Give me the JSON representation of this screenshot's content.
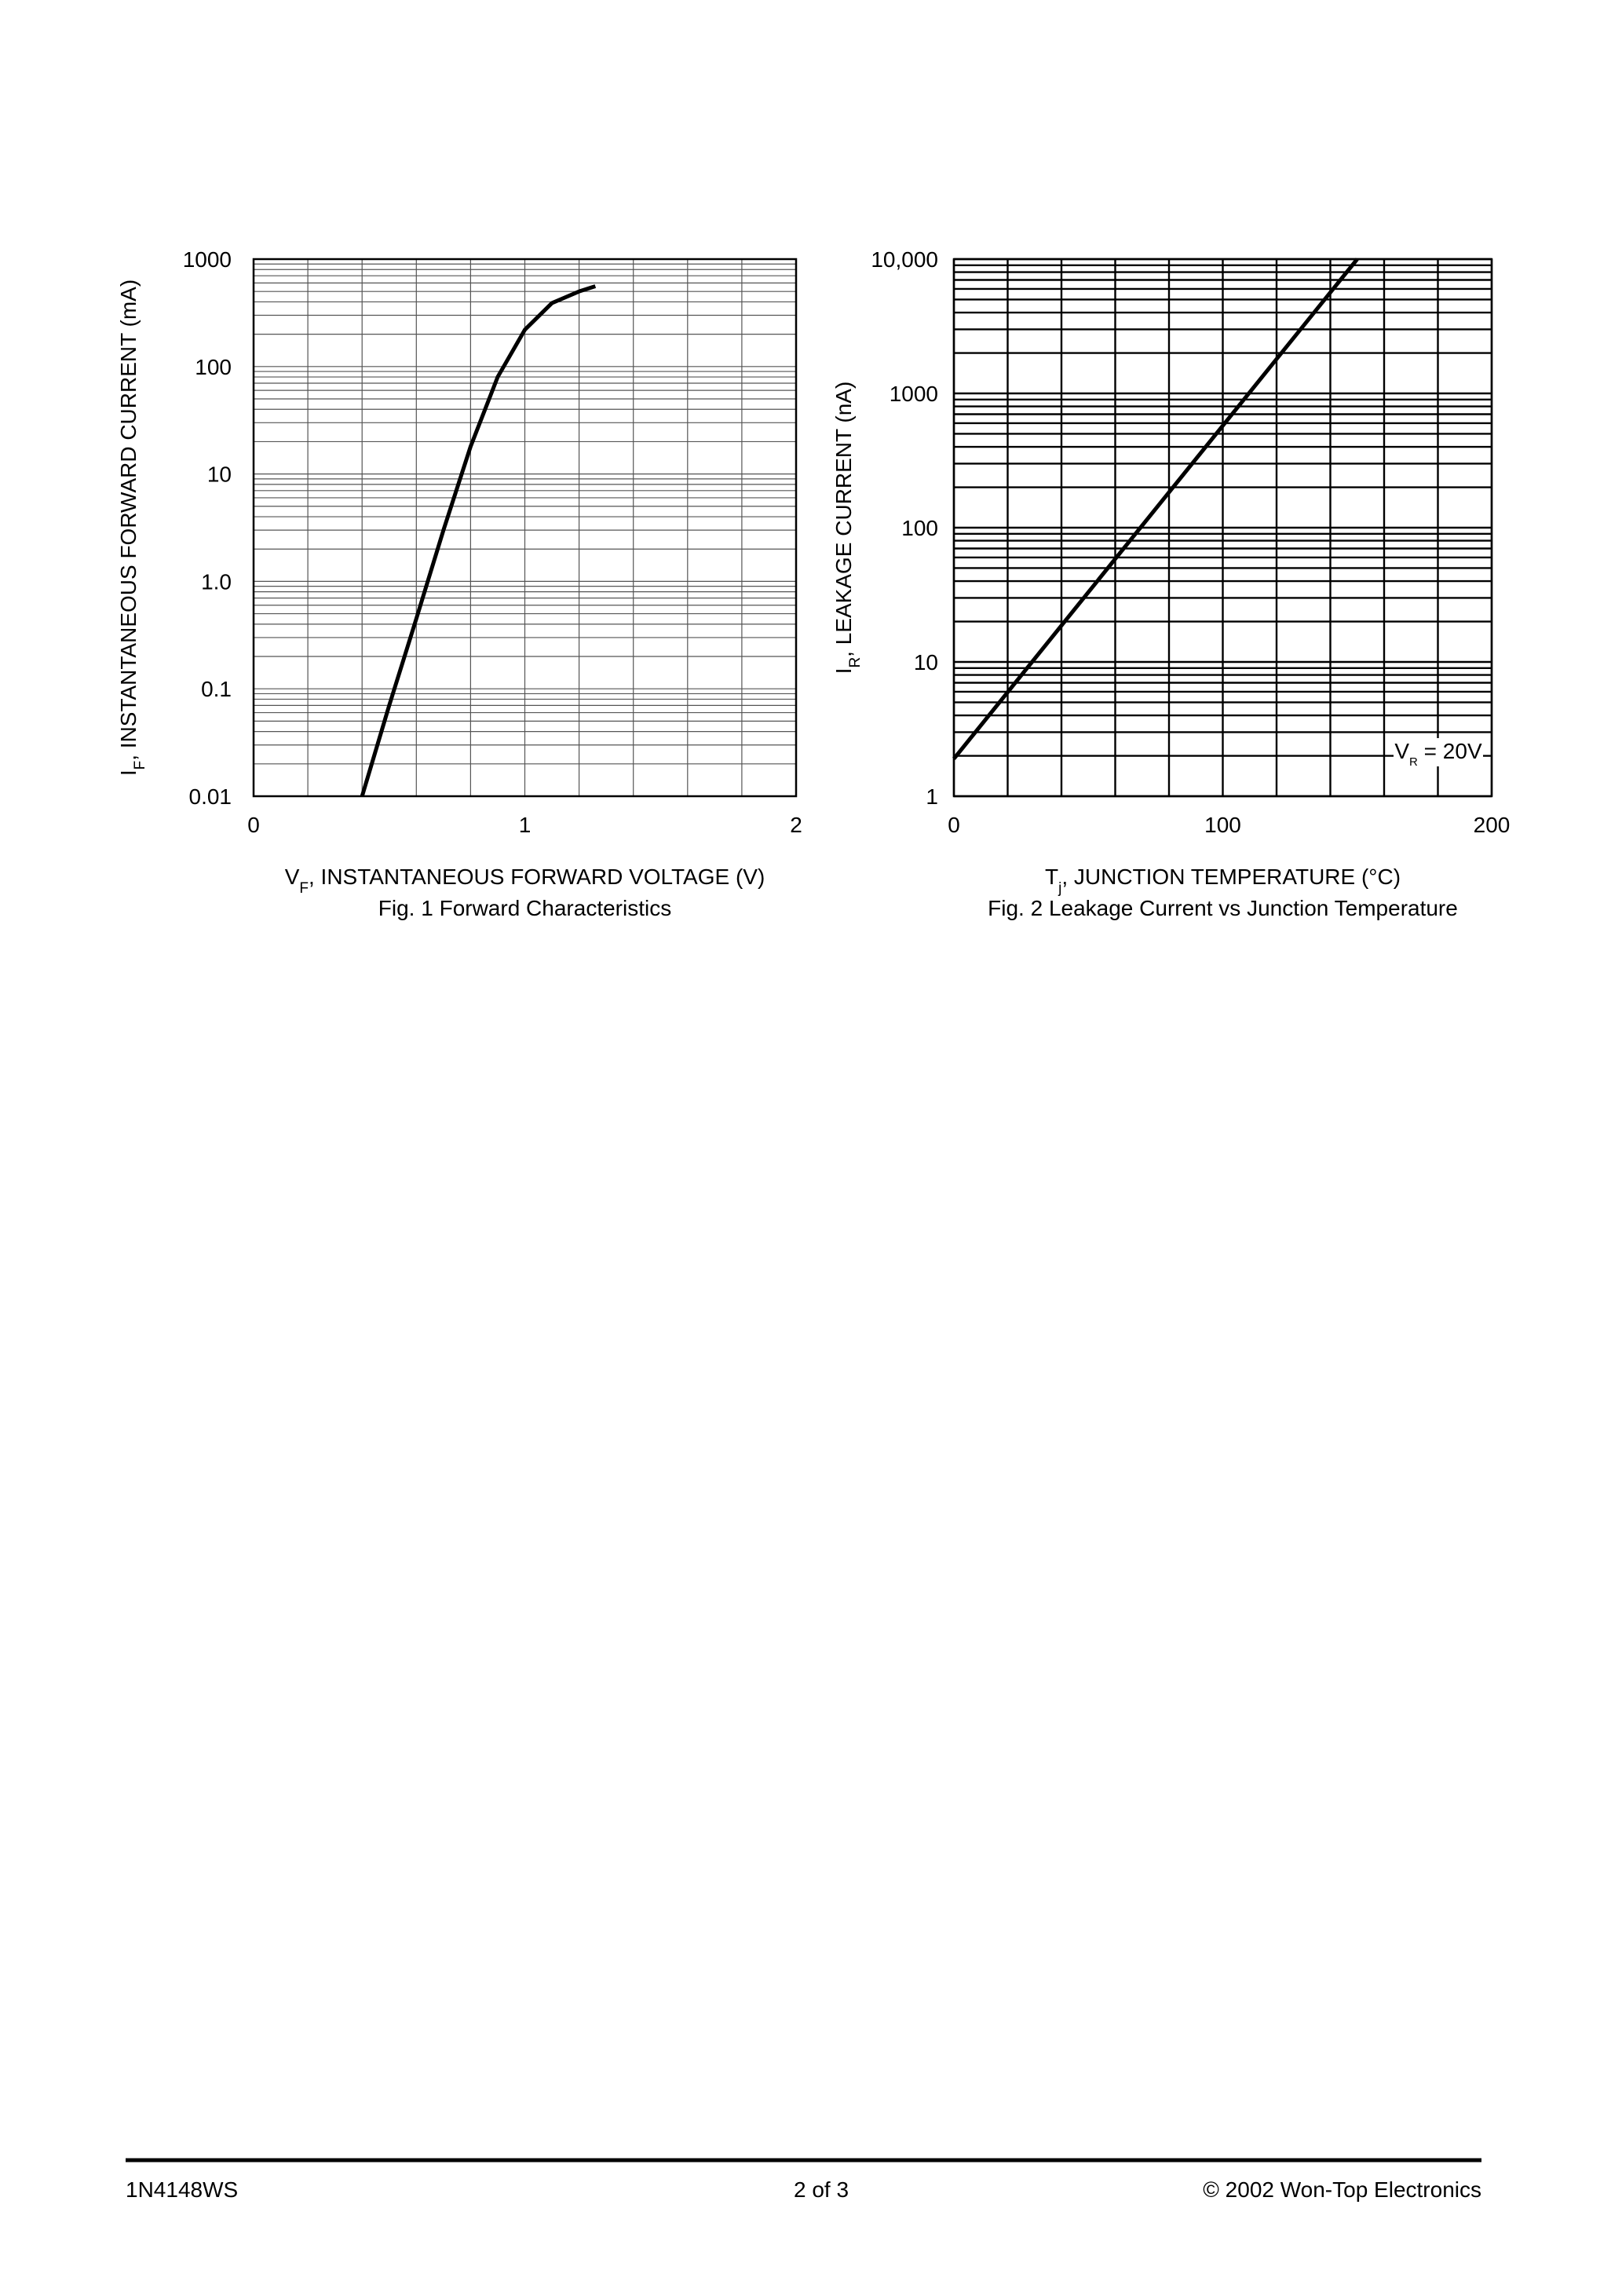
{
  "chart_data": [
    {
      "type": "line",
      "title": "Fig. 1  Forward Characteristics",
      "xlabel": [
        "V",
        "F",
        ", INSTANTANEOUS FORWARD VOLTAGE (V)"
      ],
      "ylabel": [
        "I",
        "F",
        ", INSTANTANEOUS FORWARD CURRENT (mA)"
      ],
      "xlim": [
        0,
        2
      ],
      "xticks": [
        0,
        1,
        2
      ],
      "xgrid": [
        0,
        0.2,
        0.4,
        0.6,
        0.8,
        1,
        1.2,
        1.4,
        1.6,
        1.8,
        2
      ],
      "ylim": [
        0.01,
        1000
      ],
      "ylog": true,
      "yticks": [
        0.01,
        0.1,
        {
          "value": 1,
          "label": "1.0"
        },
        10,
        100,
        1000
      ],
      "grid": true,
      "x": [
        0.4,
        0.5,
        0.6,
        0.7,
        0.8,
        0.9,
        1.0,
        1.1,
        1.2,
        1.26
      ],
      "series": [
        {
          "color": "#000000",
          "values": [
            0.01,
            0.07,
            0.45,
            3,
            18,
            80,
            220,
            390,
            500,
            560
          ]
        }
      ]
    },
    {
      "type": "line",
      "title": "Fig. 2  Leakage Current vs Junction Temperature",
      "xlabel": [
        "T",
        "j",
        ", JUNCTION TEMPERATURE (°C)"
      ],
      "ylabel": [
        "I",
        "R",
        ", LEAKAGE CURRENT (nA)"
      ],
      "xlim": [
        0,
        200
      ],
      "xticks": [
        0,
        100,
        200
      ],
      "xgrid": [
        0,
        20,
        40,
        60,
        80,
        100,
        120,
        140,
        160,
        180,
        200
      ],
      "ylim": [
        1,
        10000
      ],
      "ylog": true,
      "yticks": [
        1,
        10,
        100,
        1000,
        {
          "value": 10000,
          "label": "10,000"
        }
      ],
      "grid": true,
      "annotation": [
        "V",
        "R",
        " = 20V"
      ],
      "x": [
        0,
        150
      ],
      "series": [
        {
          "color": "#000000",
          "values": [
            1.9,
            10000
          ]
        }
      ]
    }
  ],
  "footer": {
    "left": "1N4148WS",
    "center": "2 of 3",
    "right": "© 2002 Won-Top Electronics"
  }
}
